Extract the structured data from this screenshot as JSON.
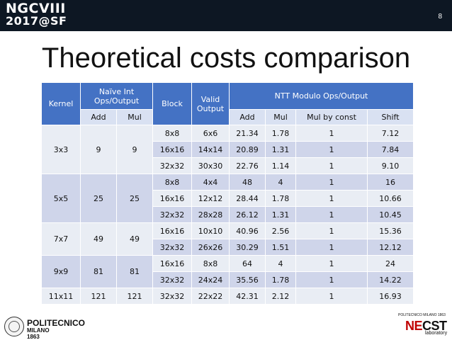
{
  "header": {
    "logo_line1": "NGCVIII",
    "logo_line2": "2017@SF",
    "page_number": "8"
  },
  "title": "Theoretical costs comparison",
  "table": {
    "h_kernel": "Kernel",
    "h_naive": "Naïve Int Ops/Output",
    "h_block": "Block",
    "h_valid": "Valid Output",
    "h_ntt": "NTT Modulo Ops/Output",
    "h_naive_add": "Add",
    "h_naive_mul": "Mul",
    "h_ntt_add": "Add",
    "h_ntt_mul": "Mul",
    "h_ntt_mulconst": "Mul by const",
    "h_ntt_shift": "Shift",
    "groups": [
      {
        "kernel": "3x3",
        "naive_add": "9",
        "naive_mul": "9",
        "rows": [
          {
            "block": "8x8",
            "valid": "6x6",
            "add": "21.34",
            "mul": "1.78",
            "mulconst": "1",
            "shift": "7.12"
          },
          {
            "block": "16x16",
            "valid": "14x14",
            "add": "20.89",
            "mul": "1.31",
            "mulconst": "1",
            "shift": "7.84"
          },
          {
            "block": "32x32",
            "valid": "30x30",
            "add": "22.76",
            "mul": "1.14",
            "mulconst": "1",
            "shift": "9.10"
          }
        ]
      },
      {
        "kernel": "5x5",
        "naive_add": "25",
        "naive_mul": "25",
        "rows": [
          {
            "block": "8x8",
            "valid": "4x4",
            "add": "48",
            "mul": "4",
            "mulconst": "1",
            "shift": "16"
          },
          {
            "block": "16x16",
            "valid": "12x12",
            "add": "28.44",
            "mul": "1.78",
            "mulconst": "1",
            "shift": "10.66"
          },
          {
            "block": "32x32",
            "valid": "28x28",
            "add": "26.12",
            "mul": "1.31",
            "mulconst": "1",
            "shift": "10.45"
          }
        ]
      },
      {
        "kernel": "7x7",
        "naive_add": "49",
        "naive_mul": "49",
        "rows": [
          {
            "block": "16x16",
            "valid": "10x10",
            "add": "40.96",
            "mul": "2.56",
            "mulconst": "1",
            "shift": "15.36"
          },
          {
            "block": "32x32",
            "valid": "26x26",
            "add": "30.29",
            "mul": "1.51",
            "mulconst": "1",
            "shift": "12.12"
          }
        ]
      },
      {
        "kernel": "9x9",
        "naive_add": "81",
        "naive_mul": "81",
        "rows": [
          {
            "block": "16x16",
            "valid": "8x8",
            "add": "64",
            "mul": "4",
            "mulconst": "1",
            "shift": "24"
          },
          {
            "block": "32x32",
            "valid": "24x24",
            "add": "35.56",
            "mul": "1.78",
            "mulconst": "1",
            "shift": "14.22"
          }
        ]
      },
      {
        "kernel": "11x11",
        "naive_add": "121",
        "naive_mul": "121",
        "rows": [
          {
            "block": "32x32",
            "valid": "22x22",
            "add": "42.31",
            "mul": "2.12",
            "mulconst": "1",
            "shift": "16.93"
          }
        ]
      }
    ]
  },
  "footer": {
    "poli_name": "POLITECNICO",
    "poli_sub": "MILANO 1863",
    "necst_top": "POLITECNICO MILANO 1863",
    "necst_ne": "NE",
    "necst_cst": "CST",
    "necst_lab": "laboratory"
  },
  "colors": {
    "header_bg": "#0d1723",
    "table_header": "#4472c4",
    "row_light": "#e9edf4",
    "row_dark": "#cfd5ea"
  }
}
